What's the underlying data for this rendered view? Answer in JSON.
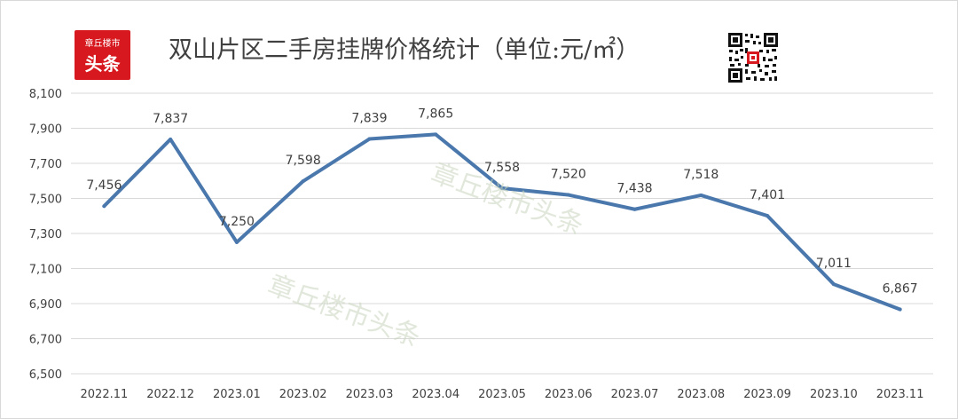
{
  "logo": {
    "small_text": "章丘楼市",
    "big_text": "头条"
  },
  "title": "双山片区二手房挂牌价格统计（单位:元/㎡）",
  "watermark": "章丘楼市头条",
  "colors": {
    "line": "#4a78ad",
    "logo_bg": "#d7191f",
    "grid": "#d9d9d9"
  },
  "icons": {
    "qr": "qr-code-icon"
  },
  "chart_data": {
    "type": "line",
    "title": "双山片区二手房挂牌价格统计（单位:元/㎡）",
    "xlabel": "",
    "ylabel": "",
    "categories": [
      "2022.11",
      "2022.12",
      "2023.01",
      "2023.02",
      "2023.03",
      "2023.04",
      "2023.05",
      "2023.06",
      "2023.07",
      "2023.08",
      "2023.09",
      "2023.10",
      "2023.11"
    ],
    "values": [
      7456,
      7837,
      7250,
      7598,
      7839,
      7865,
      7558,
      7520,
      7438,
      7518,
      7401,
      7011,
      6867
    ],
    "value_labels": [
      "7,456",
      "7,837",
      "7,250",
      "7,598",
      "7,839",
      "7,865",
      "7,558",
      "7,520",
      "7,438",
      "7,518",
      "7,401",
      "7,011",
      "6,867"
    ],
    "ylim": [
      6500,
      8100
    ],
    "yticks": [
      6500,
      6700,
      6900,
      7100,
      7300,
      7500,
      7700,
      7900,
      8100
    ],
    "ytick_labels": [
      "6,500",
      "6,700",
      "6,900",
      "7,100",
      "7,300",
      "7,500",
      "7,700",
      "7,900",
      "8,100"
    ],
    "grid": true,
    "legend": "none"
  }
}
